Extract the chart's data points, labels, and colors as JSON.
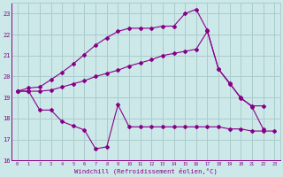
{
  "background_color": "#cce8e8",
  "grid_color": "#aacccc",
  "line_color": "#880088",
  "xlim": [
    -0.5,
    23.5
  ],
  "ylim": [
    16,
    23.5
  ],
  "yticks": [
    16,
    17,
    18,
    19,
    20,
    21,
    22,
    23
  ],
  "xticks": [
    0,
    1,
    2,
    3,
    4,
    5,
    6,
    7,
    8,
    9,
    10,
    11,
    12,
    13,
    14,
    15,
    16,
    17,
    18,
    19,
    20,
    21,
    22,
    23
  ],
  "xlabel": "Windchill (Refroidissement éolien,°C)",
  "line1_x": [
    0,
    1,
    2,
    3,
    4,
    5,
    6,
    7,
    8,
    9,
    10,
    11,
    12,
    13,
    14,
    15,
    16,
    17,
    18,
    19,
    20,
    21,
    22,
    23
  ],
  "line1_y": [
    19.3,
    19.45,
    19.5,
    19.85,
    20.2,
    20.6,
    21.05,
    21.5,
    21.85,
    22.15,
    22.3,
    22.3,
    22.3,
    22.4,
    22.4,
    23.0,
    23.2,
    22.2,
    20.35,
    19.7,
    18.95,
    18.6,
    18.6,
    null
  ],
  "line2_x": [
    0,
    1,
    2,
    3,
    4,
    5,
    6,
    7,
    8,
    9,
    10,
    11,
    12,
    13,
    14,
    15,
    16,
    17,
    18,
    19,
    20,
    21,
    22,
    23
  ],
  "line2_y": [
    19.3,
    19.3,
    19.3,
    19.35,
    19.5,
    19.65,
    19.8,
    20.0,
    20.15,
    20.3,
    20.5,
    20.65,
    20.8,
    21.0,
    21.1,
    21.2,
    21.3,
    22.15,
    20.35,
    19.65,
    19.0,
    18.55,
    17.5,
    null
  ],
  "line3_x": [
    0,
    1,
    2,
    3,
    4,
    5,
    6,
    7,
    8,
    9,
    10,
    11,
    12,
    13,
    14,
    15,
    16,
    17,
    18,
    19,
    20,
    21,
    22,
    23
  ],
  "line3_y": [
    19.3,
    19.3,
    18.4,
    18.4,
    17.85,
    17.65,
    17.45,
    16.55,
    16.65,
    18.65,
    17.6,
    17.6,
    17.6,
    17.6,
    17.6,
    17.6,
    17.6,
    17.6,
    17.6,
    17.5,
    17.5,
    17.4,
    17.4,
    17.4
  ]
}
